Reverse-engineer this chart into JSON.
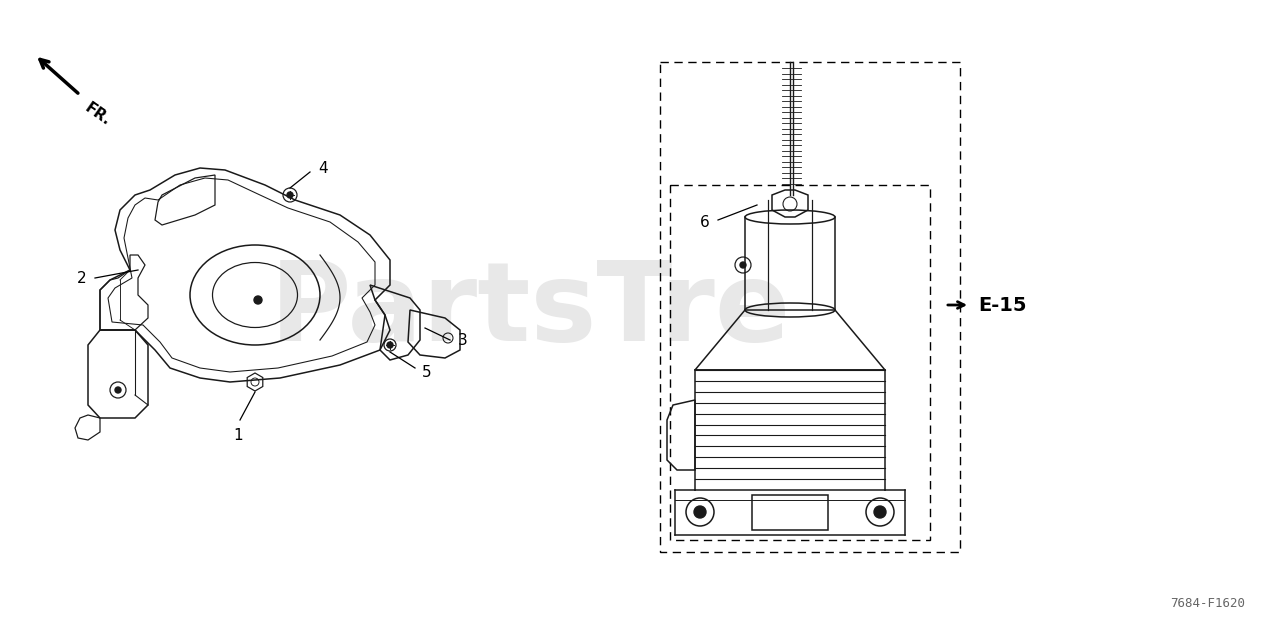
{
  "bg_color": "#ffffff",
  "part_code": "7684-F1620",
  "watermark": "PartsTre",
  "e15_label": "E-15",
  "line_color": "#1a1a1a",
  "lw": 1.0
}
